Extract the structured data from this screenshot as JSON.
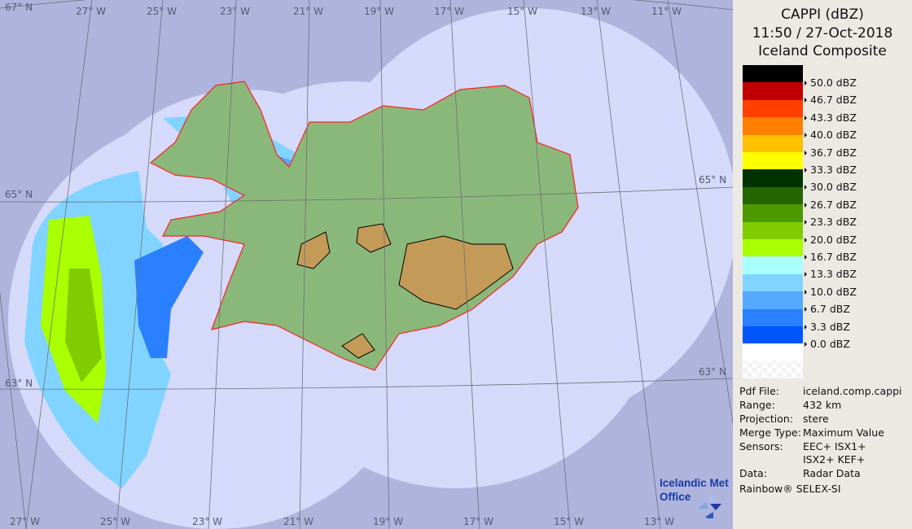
{
  "header": {
    "product": "CAPPI (dBZ)",
    "datetime": "11:50 / 27-Oct-2018",
    "site": "Iceland Composite"
  },
  "legend": [
    {
      "label": "50.0 dBZ",
      "color": "#000000"
    },
    {
      "label": "46.7 dBZ",
      "color": "#c00000"
    },
    {
      "label": "43.3 dBZ",
      "color": "#ff4000"
    },
    {
      "label": "40.0 dBZ",
      "color": "#ff8000"
    },
    {
      "label": "36.7 dBZ",
      "color": "#ffc000"
    },
    {
      "label": "33.3 dBZ",
      "color": "#ffff00"
    },
    {
      "label": "30.0 dBZ",
      "color": "#003300"
    },
    {
      "label": "26.7 dBZ",
      "color": "#266600"
    },
    {
      "label": "23.3 dBZ",
      "color": "#4d9900"
    },
    {
      "label": "20.0 dBZ",
      "color": "#80cc00"
    },
    {
      "label": "16.7 dBZ",
      "color": "#aaff00"
    },
    {
      "label": "13.3 dBZ",
      "color": "#aaffff"
    },
    {
      "label": "10.0 dBZ",
      "color": "#80d4ff"
    },
    {
      "label": "6.7 dBZ",
      "color": "#55aaff"
    },
    {
      "label": "3.3 dBZ",
      "color": "#2b80ff"
    },
    {
      "label": "0.0 dBZ",
      "color": "#0055ff"
    }
  ],
  "legend_below_zero": "#ffffff",
  "info": {
    "pdf_file": {
      "key": "Pdf File:",
      "value": "iceland.comp.cappi"
    },
    "range": {
      "key": "Range:",
      "value": "432 km"
    },
    "projection": {
      "key": "Projection:",
      "value": "stere"
    },
    "merge_type": {
      "key": "Merge Type:",
      "value": "Maximum Value"
    },
    "sensors": {
      "key": "Sensors:",
      "value": "EEC+ ISX1+",
      "value2": "ISX2+ KEF+"
    },
    "data": {
      "key": "Data:",
      "value": "Radar Data"
    },
    "software": "Rainbow® SELEX-SI"
  },
  "logo": {
    "line1": "Icelandic Met",
    "line2": "Office"
  },
  "grid": {
    "top": [
      "27° W",
      "25° W",
      "23° W",
      "21° W",
      "19° W",
      "17° W",
      "15° W",
      "13° W",
      "11° W"
    ],
    "bottom": [
      "27° W",
      "25° W",
      "23° W",
      "21° W",
      "19° W",
      "17° W",
      "15° W",
      "13° W"
    ],
    "left": [
      "67° N",
      "65° N",
      "63° N"
    ],
    "right": [
      "65° N",
      "63° N"
    ]
  },
  "colors": {
    "outside": "#aeb4dc",
    "coverage": "#d5dafa",
    "land": "#8ab87a",
    "coast": "#ff2020"
  }
}
